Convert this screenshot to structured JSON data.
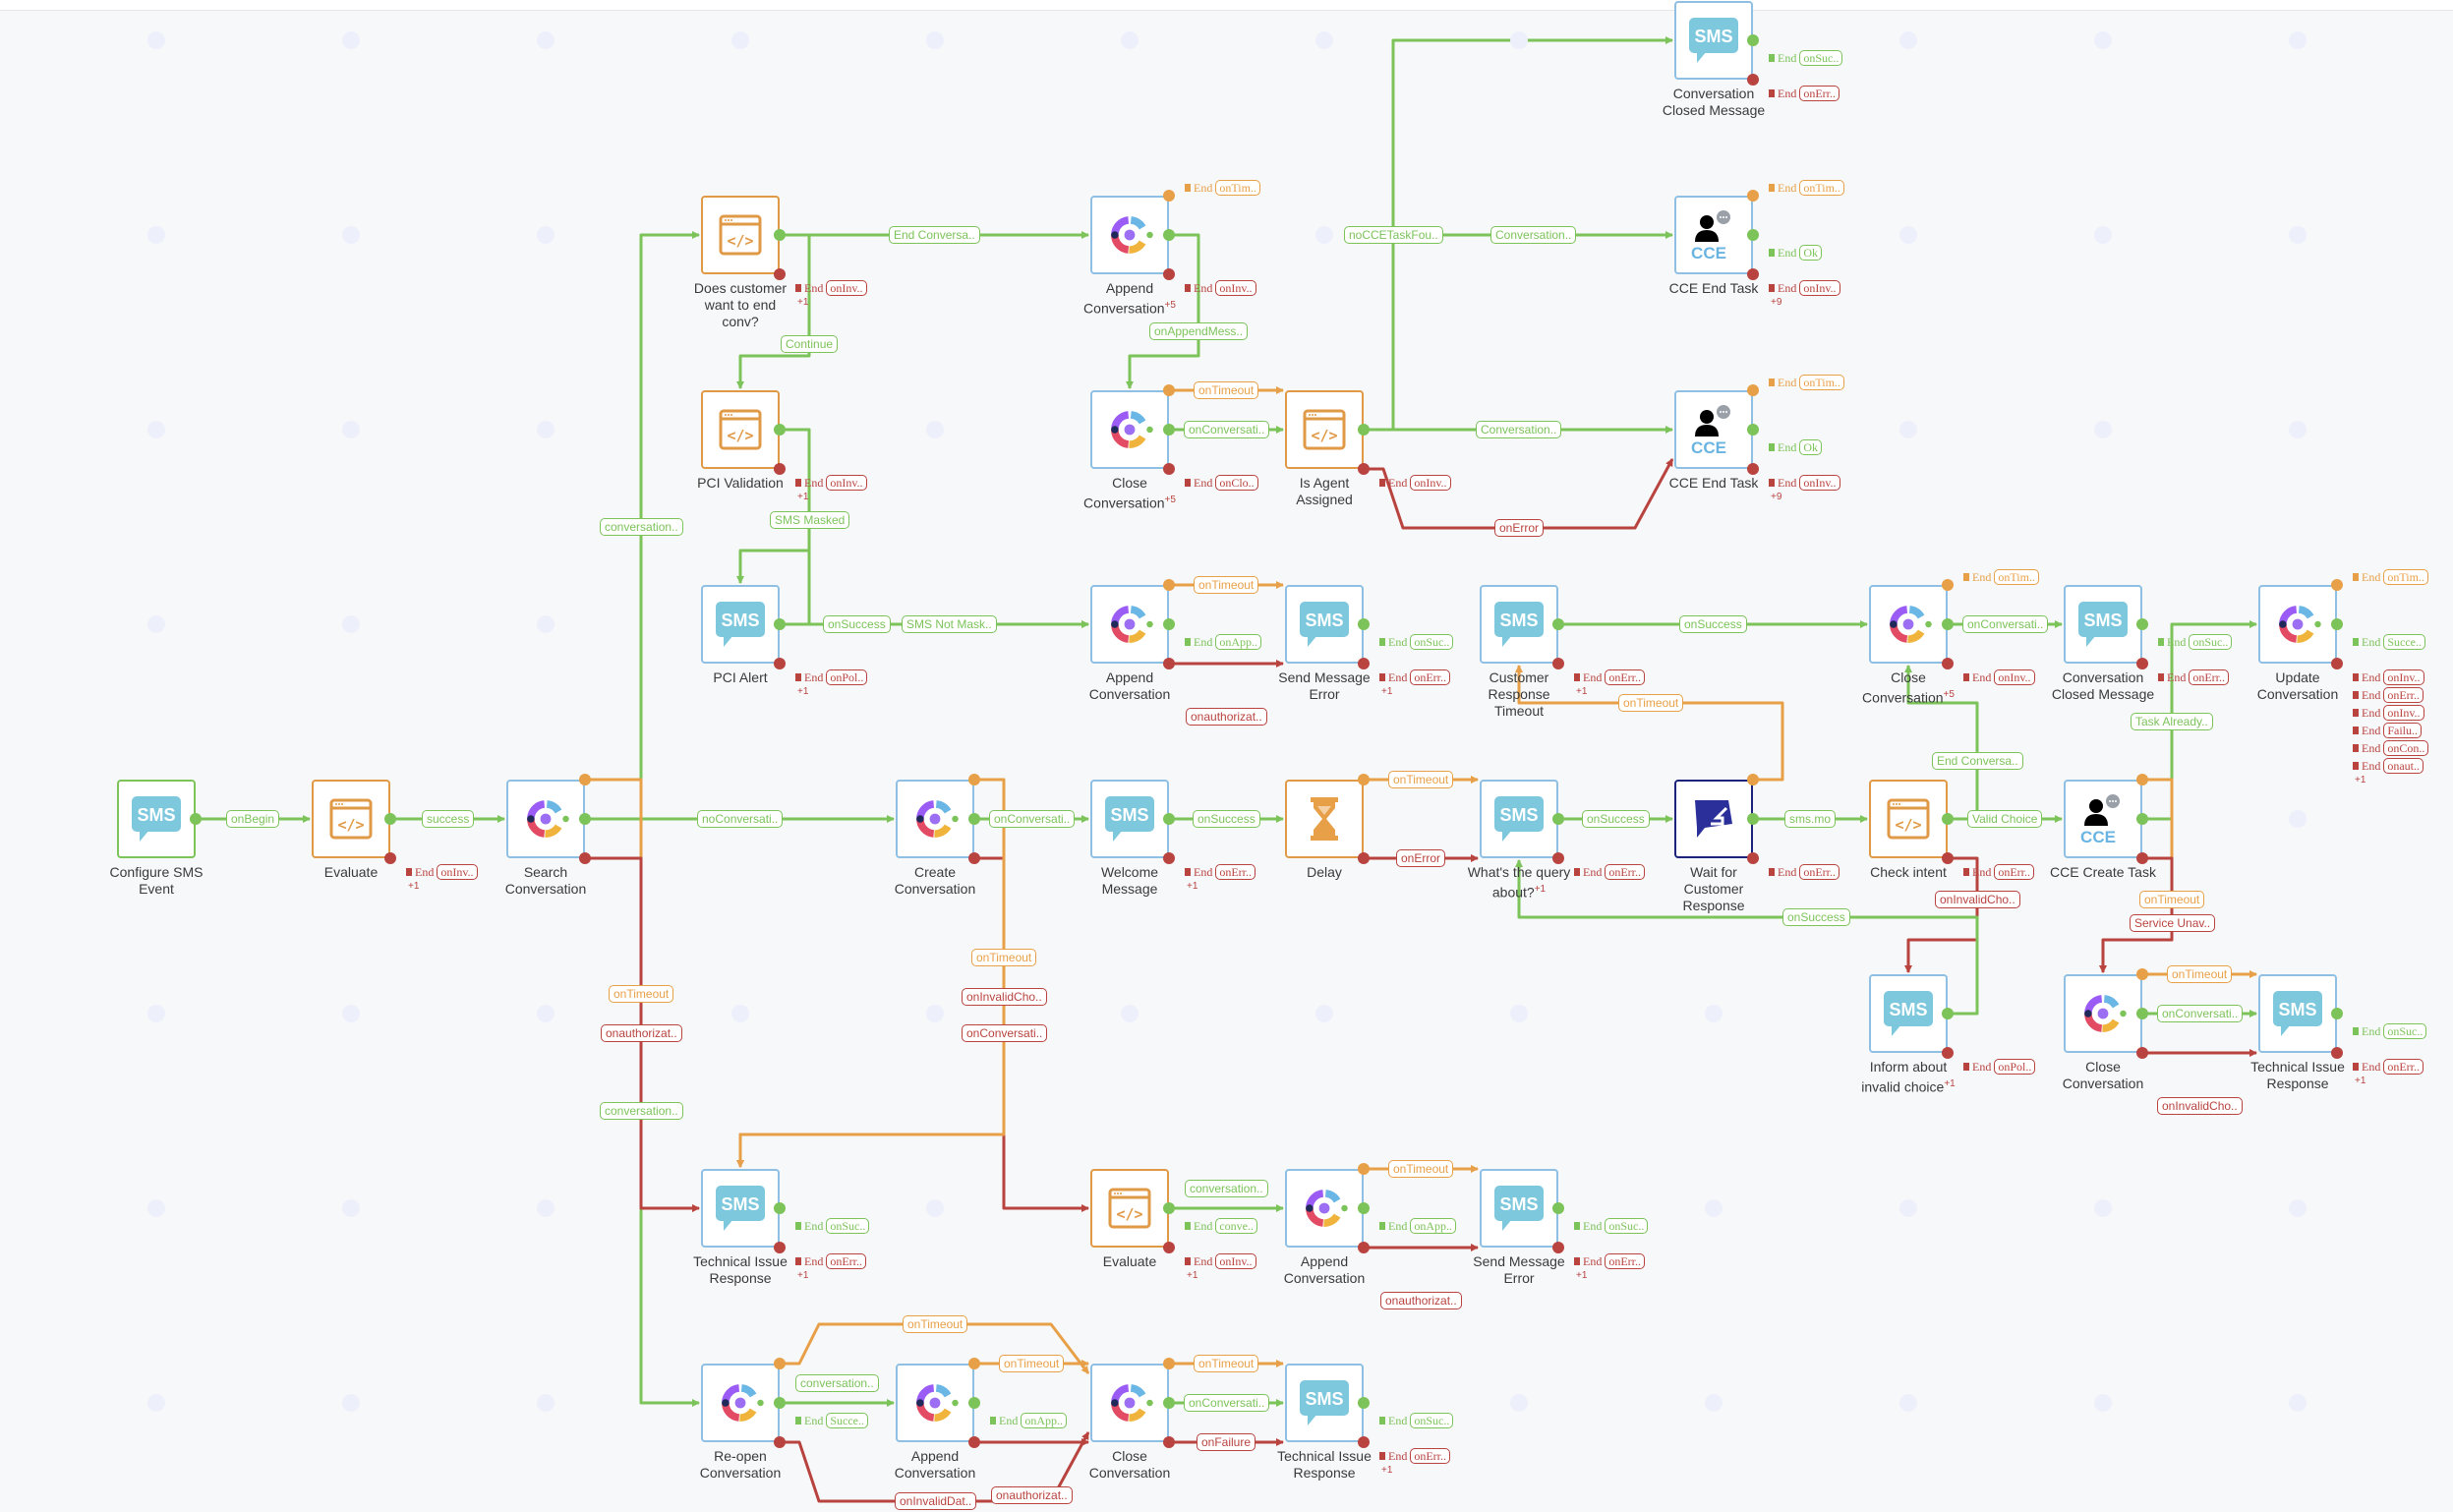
{
  "colors": {
    "success": "#7cc35a",
    "timeout": "#e8a048",
    "error": "#b8433f",
    "node_border": "#8fc0e4",
    "code_border": "#e09a47",
    "wait_border": "#1d237a",
    "sms_icon": "#7ec8de",
    "cce_text": "#6ab4e2"
  },
  "end_label": "End",
  "nodes": [
    {
      "id": "convClosed0",
      "type": "sms",
      "label": "Conversation Closed Message",
      "tags": [
        {
          "port": "success",
          "text": "onSuc.."
        },
        {
          "port": "error",
          "text": "onErr.."
        }
      ]
    },
    {
      "id": "does",
      "type": "code",
      "label": "Does customer want to end conv?",
      "more": "+1",
      "tags": [
        {
          "port": "error",
          "text": "onInv.."
        }
      ]
    },
    {
      "id": "append1",
      "type": "webex",
      "label": "Append Conversation",
      "sup": "+5",
      "tags": [
        {
          "port": "timeout",
          "text": "onTim.."
        },
        {
          "port": "error",
          "text": "onInv.."
        }
      ]
    },
    {
      "id": "cceEnd1",
      "type": "cce",
      "label": "CCE End Task",
      "more": "+9",
      "tags": [
        {
          "port": "timeout",
          "text": "onTim.."
        },
        {
          "port": "success",
          "text": "Ok"
        },
        {
          "port": "error",
          "text": "onInv.."
        }
      ]
    },
    {
      "id": "pci",
      "type": "code",
      "label": "PCI Validation",
      "more": "+1",
      "tags": [
        {
          "port": "error",
          "text": "onInv.."
        }
      ]
    },
    {
      "id": "close1",
      "type": "webex",
      "label": "Close Conversation",
      "sup": "+5",
      "tags": [
        {
          "port": "error",
          "text": "onClo.."
        }
      ]
    },
    {
      "id": "isAgent",
      "type": "code",
      "label": "Is Agent Assigned",
      "tags": [
        {
          "port": "error",
          "text": "onInv.."
        }
      ]
    },
    {
      "id": "cceEnd2",
      "type": "cce",
      "label": "CCE End Task",
      "more": "+9",
      "tags": [
        {
          "port": "timeout",
          "text": "onTim.."
        },
        {
          "port": "success",
          "text": "Ok"
        },
        {
          "port": "error",
          "text": "onInv.."
        }
      ]
    },
    {
      "id": "pciAlert",
      "type": "sms",
      "label": "PCI Alert",
      "more": "+1",
      "tags": [
        {
          "port": "error",
          "text": "onPol.."
        }
      ]
    },
    {
      "id": "append2",
      "type": "webex",
      "label": "Append Conversation",
      "tags": [
        {
          "port": "success",
          "text": "onApp.."
        }
      ]
    },
    {
      "id": "sendErr1",
      "type": "sms",
      "label": "Send Message Error",
      "more": "+1",
      "tags": [
        {
          "port": "success",
          "text": "onSuc.."
        },
        {
          "port": "error",
          "text": "onErr.."
        }
      ]
    },
    {
      "id": "custTimeout",
      "type": "sms",
      "label": "Customer Response Timeout",
      "more": "+1",
      "tags": [
        {
          "port": "error",
          "text": "onErr.."
        }
      ]
    },
    {
      "id": "close3",
      "type": "webex",
      "label": "Close Conversation",
      "sup": "+5",
      "tags": [
        {
          "port": "timeout",
          "text": "onTim.."
        },
        {
          "port": "error",
          "text": "onInv.."
        }
      ]
    },
    {
      "id": "convClosed2",
      "type": "sms",
      "label": "Conversation Closed Message",
      "tags": [
        {
          "port": "success",
          "text": "onSuc.."
        },
        {
          "port": "error",
          "text": "onErr.."
        }
      ]
    },
    {
      "id": "update",
      "type": "webex",
      "label": "Update Conversation",
      "more": "+1",
      "tags": [
        {
          "port": "timeout",
          "text": "onTim.."
        },
        {
          "port": "success",
          "text": "Succe.."
        },
        {
          "port": "error",
          "text": "onInv.."
        },
        {
          "port": "error",
          "text": "onErr.."
        },
        {
          "port": "error",
          "text": "onInv.."
        },
        {
          "port": "error",
          "text": "Failu.."
        },
        {
          "port": "error",
          "text": "onCon.."
        },
        {
          "port": "error",
          "text": "onaut.."
        }
      ]
    },
    {
      "id": "cfg",
      "type": "start",
      "label": "Configure SMS Event",
      "tags": []
    },
    {
      "id": "eval1",
      "type": "code",
      "label": "Evaluate",
      "more": "+1",
      "tags": [
        {
          "port": "error",
          "text": "onInv.."
        }
      ]
    },
    {
      "id": "search",
      "type": "webex",
      "label": "Search Conversation",
      "tags": []
    },
    {
      "id": "create",
      "type": "webex",
      "label": "Create Conversation",
      "tags": []
    },
    {
      "id": "welcome",
      "type": "sms",
      "label": "Welcome Message",
      "more": "+1",
      "tags": [
        {
          "port": "error",
          "text": "onErr.."
        }
      ]
    },
    {
      "id": "delay",
      "type": "delay",
      "label": "Delay",
      "tags": []
    },
    {
      "id": "whats",
      "type": "sms",
      "label": "What's the query about?",
      "sup": "+1",
      "tags": [
        {
          "port": "error",
          "text": "onErr.."
        }
      ]
    },
    {
      "id": "wait",
      "type": "wait",
      "label": "Wait for Customer Response",
      "tags": [
        {
          "port": "error",
          "text": "onErr.."
        }
      ]
    },
    {
      "id": "check",
      "type": "code",
      "label": "Check intent",
      "tags": [
        {
          "port": "error",
          "text": "onErr.."
        }
      ]
    },
    {
      "id": "cceCreate",
      "type": "cce",
      "label": "CCE Create Task",
      "tags": []
    },
    {
      "id": "inform",
      "type": "sms",
      "label": "Inform about invalid choice",
      "sup": "+1",
      "tags": [
        {
          "port": "error",
          "text": "onPol.."
        }
      ]
    },
    {
      "id": "close2",
      "type": "webex",
      "label": "Close Conversation",
      "tags": []
    },
    {
      "id": "tech3",
      "type": "sms",
      "label": "Technical Issue Response",
      "more": "+1",
      "tags": [
        {
          "port": "success",
          "text": "onSuc.."
        },
        {
          "port": "error",
          "text": "onErr.."
        }
      ]
    },
    {
      "id": "tech1",
      "type": "sms",
      "label": "Technical Issue Response",
      "more": "+1",
      "tags": [
        {
          "port": "success",
          "text": "onSuc.."
        },
        {
          "port": "error",
          "text": "onErr.."
        }
      ]
    },
    {
      "id": "eval2",
      "type": "code",
      "label": "Evaluate",
      "more": "+1",
      "tags": [
        {
          "port": "success",
          "text": "conve.."
        },
        {
          "port": "error",
          "text": "onInv.."
        }
      ]
    },
    {
      "id": "append3",
      "type": "webex",
      "label": "Append Conversation",
      "tags": [
        {
          "port": "success",
          "text": "onApp.."
        }
      ]
    },
    {
      "id": "sendErr2",
      "type": "sms",
      "label": "Send Message Error",
      "more": "+1",
      "tags": [
        {
          "port": "success",
          "text": "onSuc.."
        },
        {
          "port": "error",
          "text": "onErr.."
        }
      ]
    },
    {
      "id": "reopen",
      "type": "webex",
      "label": "Re-open Conversation",
      "tags": [
        {
          "port": "success",
          "text": "Succe.."
        }
      ]
    },
    {
      "id": "append4",
      "type": "webex",
      "label": "Append Conversation",
      "tags": [
        {
          "port": "success",
          "text": "onApp.."
        }
      ]
    },
    {
      "id": "close4",
      "type": "webex",
      "label": "Close Conversation",
      "tags": []
    },
    {
      "id": "tech4",
      "type": "sms",
      "label": "Technical Issue Response",
      "more": "+1",
      "tags": [
        {
          "port": "success",
          "text": "onSuc.."
        },
        {
          "port": "error",
          "text": "onErr.."
        }
      ]
    }
  ],
  "edges": [
    {
      "from": "cfg",
      "port": "success",
      "to": "eval1",
      "label": "onBegin"
    },
    {
      "from": "eval1",
      "port": "success",
      "to": "search",
      "label": "success"
    },
    {
      "from": "search",
      "port": "success",
      "to": "create",
      "label": "noConversati.."
    },
    {
      "from": "search",
      "port": "success",
      "to": "does",
      "label": "conversation.."
    },
    {
      "from": "search",
      "port": "success",
      "to": "reopen",
      "label": "conversation.."
    },
    {
      "from": "search",
      "port": "timeout",
      "to": "tech1",
      "label": "onTimeout"
    },
    {
      "from": "search",
      "port": "error",
      "to": "tech1",
      "label": "onauthorizat.."
    },
    {
      "from": "create",
      "port": "success",
      "to": "welcome",
      "label": "onConversati.."
    },
    {
      "from": "create",
      "port": "error",
      "to": "eval2",
      "label": "onConversati.."
    },
    {
      "from": "create",
      "port": "error",
      "to": "tech1",
      "label": "onInvalidCho.."
    },
    {
      "from": "create",
      "port": "timeout",
      "to": "tech1",
      "label": "onTimeout"
    },
    {
      "from": "welcome",
      "port": "success",
      "to": "delay",
      "label": "onSuccess"
    },
    {
      "from": "delay",
      "port": "timeout",
      "to": "whats",
      "label": "onTimeout"
    },
    {
      "from": "delay",
      "port": "error",
      "to": "whats",
      "label": "onError"
    },
    {
      "from": "whats",
      "port": "success",
      "to": "wait",
      "label": "onSuccess"
    },
    {
      "from": "wait",
      "port": "success",
      "to": "check",
      "label": "sms.mo"
    },
    {
      "from": "wait",
      "port": "timeout",
      "to": "custTimeout",
      "label": "onTimeout"
    },
    {
      "from": "check",
      "port": "success",
      "to": "cceCreate",
      "label": "Valid Choice"
    },
    {
      "from": "check",
      "port": "success",
      "to": "close3",
      "label": "End Conversa.."
    },
    {
      "from": "check",
      "port": "error",
      "to": "inform",
      "label": "onInvalidCho.."
    },
    {
      "from": "cceCreate",
      "port": "success",
      "to": "update",
      "label": "Task Already.."
    },
    {
      "from": "cceCreate",
      "port": "timeout",
      "to": "close2",
      "label": "onTimeout"
    },
    {
      "from": "cceCreate",
      "port": "error",
      "to": "close2",
      "label": "Service Unav.."
    },
    {
      "from": "inform",
      "port": "success",
      "to": "whats",
      "label": "onSuccess"
    },
    {
      "from": "custTimeout",
      "port": "success",
      "to": "close3",
      "label": "onSuccess"
    },
    {
      "from": "close3",
      "port": "success",
      "to": "convClosed2",
      "label": "onConversati.."
    },
    {
      "from": "close2",
      "port": "timeout",
      "to": "tech3",
      "label": "onTimeout"
    },
    {
      "from": "close2",
      "port": "success",
      "to": "tech3",
      "label": "onConversati.."
    },
    {
      "from": "close2",
      "port": "error",
      "to": "tech3",
      "label": "onInvalidCho.."
    },
    {
      "from": "does",
      "port": "success",
      "to": "append1",
      "label": "End Conversa.."
    },
    {
      "from": "does",
      "port": "success",
      "to": "pci",
      "label": "Continue"
    },
    {
      "from": "append1",
      "port": "success",
      "to": "close1",
      "label": "onAppendMess.."
    },
    {
      "from": "close1",
      "port": "timeout",
      "to": "isAgent",
      "label": "onTimeout"
    },
    {
      "from": "close1",
      "port": "success",
      "to": "isAgent",
      "label": "onConversati.."
    },
    {
      "from": "isAgent",
      "port": "success",
      "to": "convClosed0",
      "label": "noCCETaskFou.."
    },
    {
      "from": "isAgent",
      "port": "success",
      "to": "cceEnd1",
      "label": "Conversation.."
    },
    {
      "from": "isAgent",
      "port": "success",
      "to": "cceEnd2",
      "label": "Conversation.."
    },
    {
      "from": "isAgent",
      "port": "error",
      "to": "cceEnd2",
      "label": "onError"
    },
    {
      "from": "pci",
      "port": "success",
      "to": "pciAlert",
      "label": "SMS Masked"
    },
    {
      "from": "pci",
      "port": "success",
      "to": "append2",
      "label": "SMS Not Mask.."
    },
    {
      "from": "pciAlert",
      "port": "success",
      "to": "append2",
      "label": "onSuccess"
    },
    {
      "from": "append2",
      "port": "timeout",
      "to": "sendErr1",
      "label": "onTimeout"
    },
    {
      "from": "append2",
      "port": "error",
      "to": "sendErr1",
      "label": "onauthorizat.."
    },
    {
      "from": "eval2",
      "port": "success",
      "to": "append3",
      "label": "conversation.."
    },
    {
      "from": "append3",
      "port": "timeout",
      "to": "sendErr2",
      "label": "onTimeout"
    },
    {
      "from": "append3",
      "port": "error",
      "to": "sendErr2",
      "label": "onauthorizat.."
    },
    {
      "from": "reopen",
      "port": "success",
      "to": "append4",
      "label": "conversation.."
    },
    {
      "from": "reopen",
      "port": "timeout",
      "to": "close4",
      "label": "onTimeout"
    },
    {
      "from": "reopen",
      "port": "error",
      "to": "close4",
      "label": "onInvalidDat.."
    },
    {
      "from": "append4",
      "port": "timeout",
      "to": "close4",
      "label": "onTimeout"
    },
    {
      "from": "append4",
      "port": "error",
      "to": "close4",
      "label": "onauthorizat.."
    },
    {
      "from": "close4",
      "port": "timeout",
      "to": "tech4",
      "label": "onTimeout"
    },
    {
      "from": "close4",
      "port": "success",
      "to": "tech4",
      "label": "onConversati.."
    },
    {
      "from": "close4",
      "port": "error",
      "to": "tech4",
      "label": "onFailure"
    }
  ]
}
